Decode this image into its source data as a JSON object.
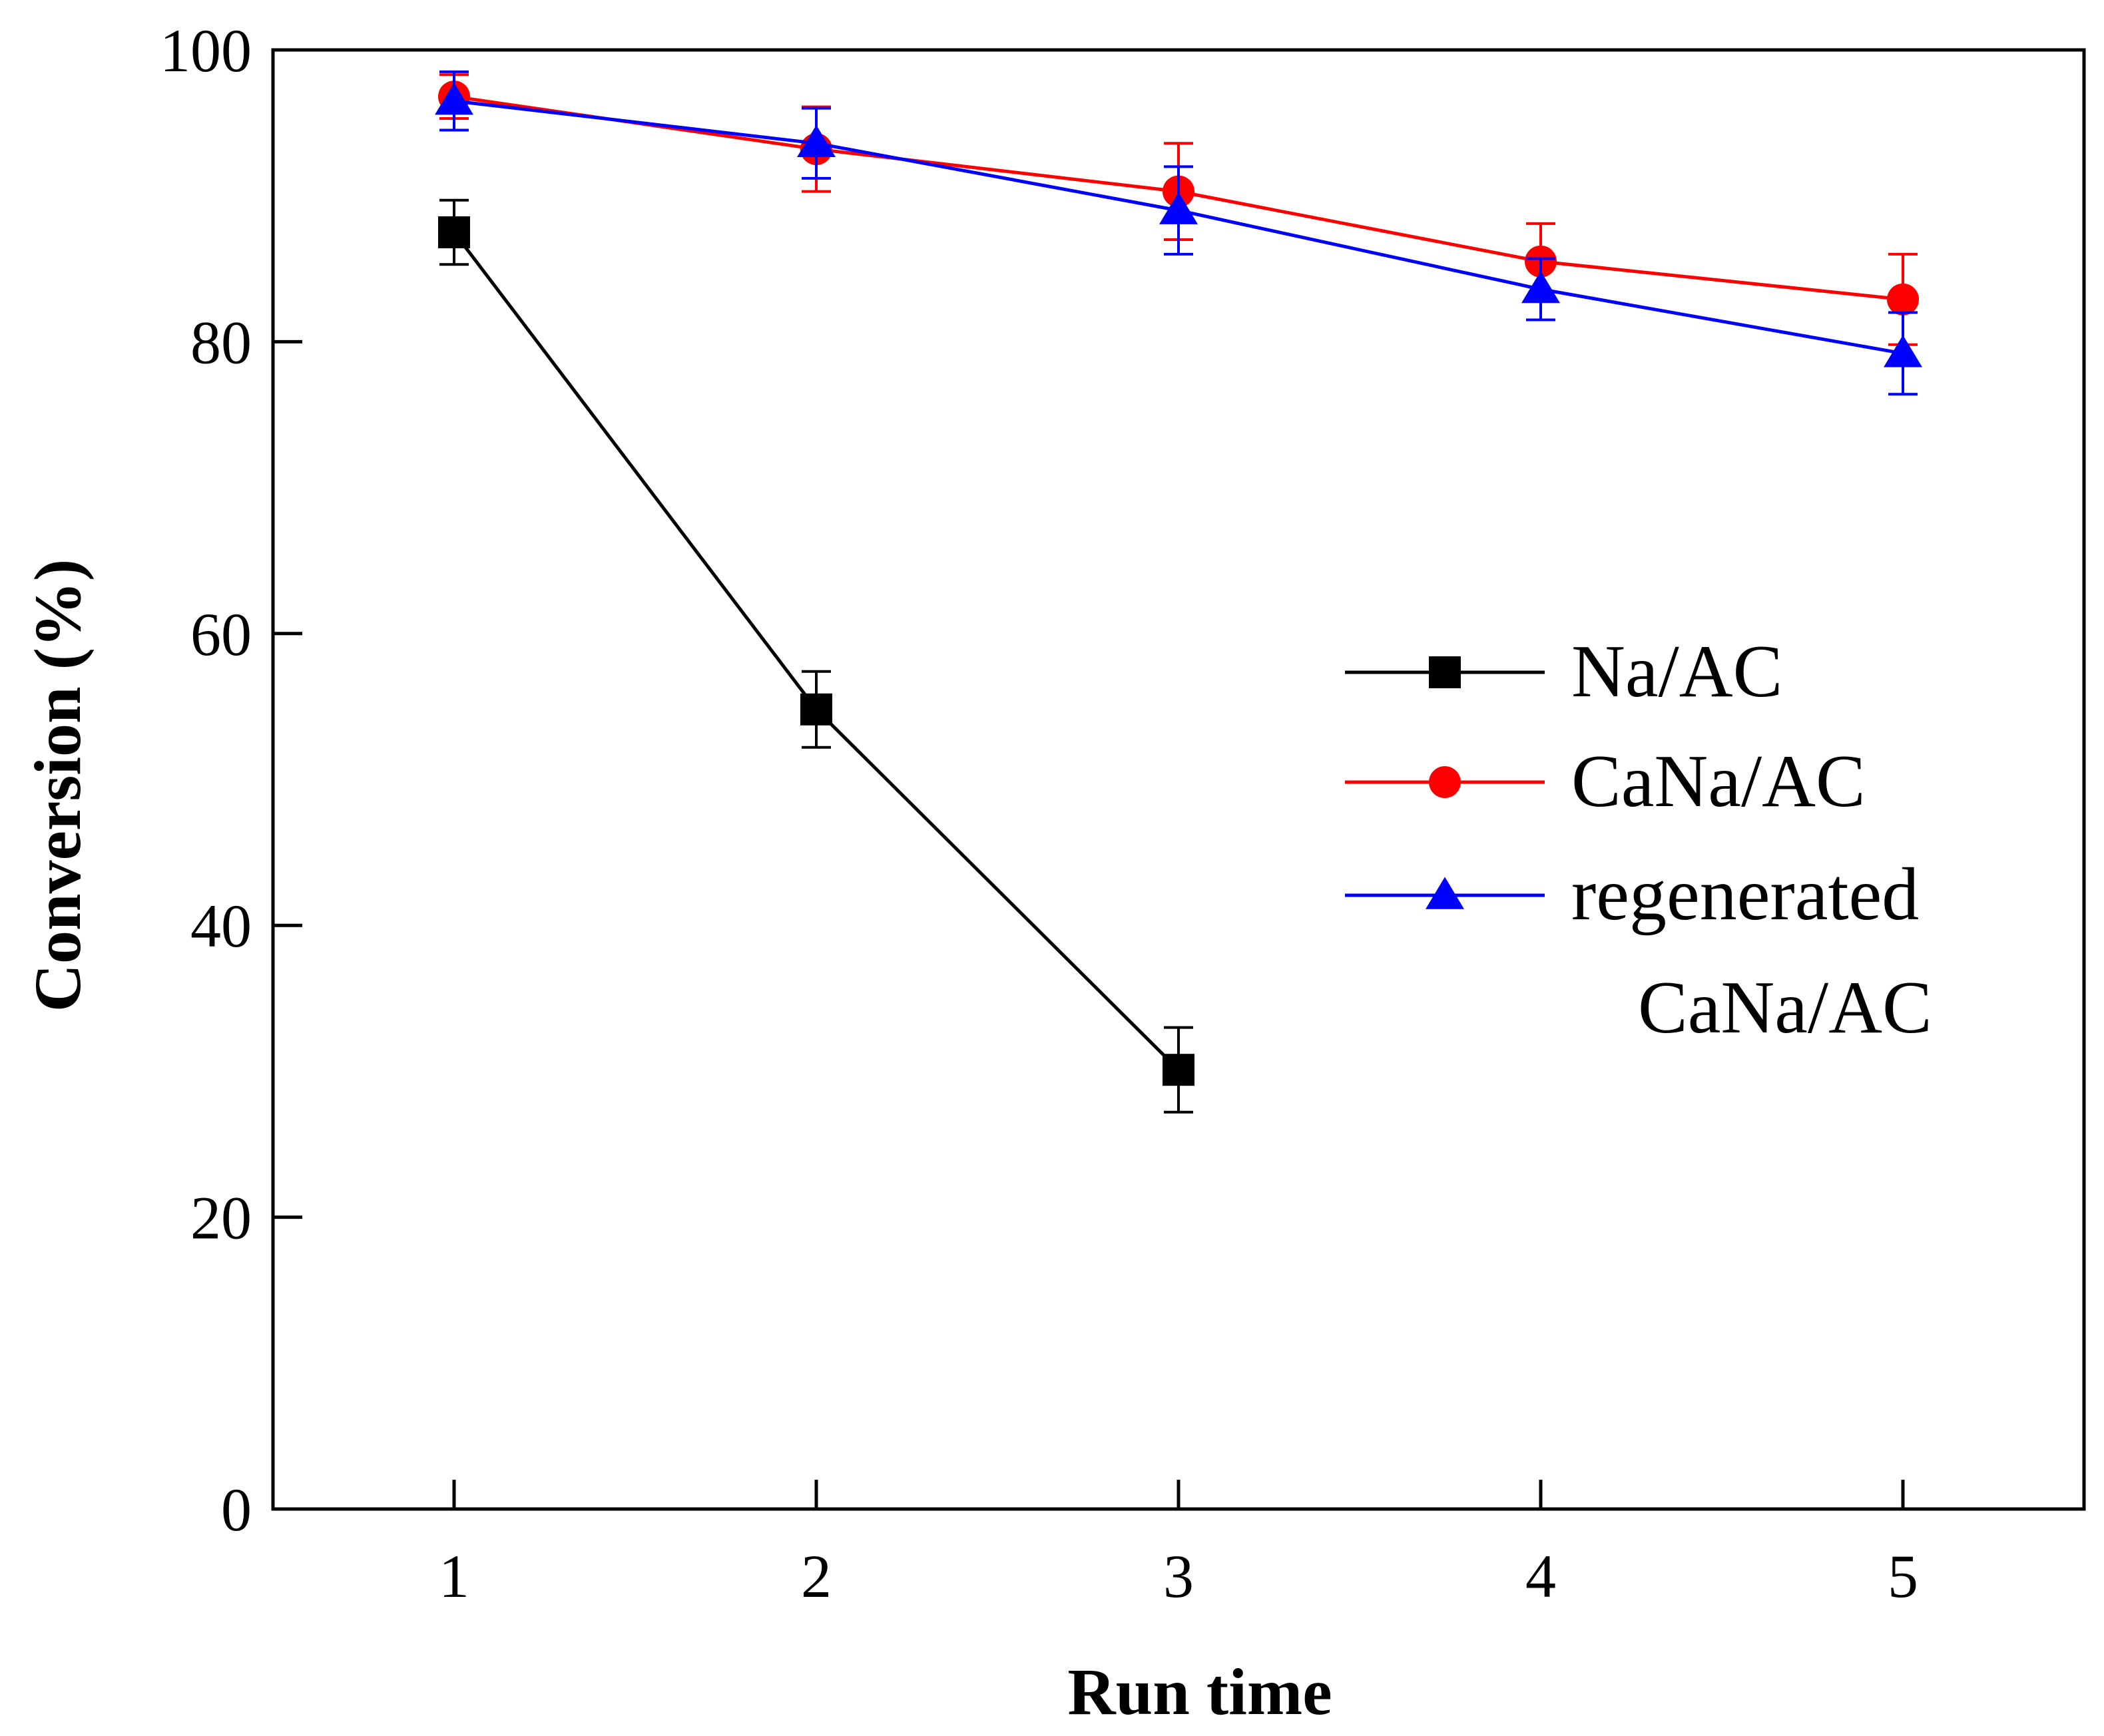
{
  "chart_data": {
    "type": "line",
    "title": "",
    "xlabel": "Run time",
    "ylabel": "Conversion (%)",
    "xlim": [
      0.5,
      5.5
    ],
    "ylim": [
      0,
      100
    ],
    "x_ticks": [
      "1",
      "2",
      "3",
      "4",
      "5"
    ],
    "y_ticks": [
      "0",
      "20",
      "40",
      "60",
      "80",
      "100"
    ],
    "grid": false,
    "legend_position": "center-right",
    "series": [
      {
        "name": "Na/AC",
        "legend_lines": [
          "Na/AC"
        ],
        "color": "#000000",
        "marker": "square",
        "x": [
          1,
          2,
          3
        ],
        "values": [
          87.5,
          54.8,
          30.1
        ],
        "errors": [
          2.2,
          2.6,
          2.9
        ]
      },
      {
        "name": "CaNa/AC",
        "legend_lines": [
          "CaNa/AC"
        ],
        "color": "#ff0000",
        "marker": "circle",
        "x": [
          1,
          2,
          3,
          4,
          5
        ],
        "values": [
          96.8,
          93.2,
          90.3,
          85.5,
          82.9
        ],
        "errors": [
          1.5,
          2.9,
          3.3,
          2.6,
          3.1
        ]
      },
      {
        "name": "regenerated CaNa/AC",
        "legend_lines": [
          "regenerated",
          "CaNa/AC"
        ],
        "color": "#0000ff",
        "marker": "triangle",
        "x": [
          1,
          2,
          3,
          4,
          5
        ],
        "values": [
          96.5,
          93.6,
          89.0,
          83.6,
          79.2
        ],
        "errors": [
          2.0,
          2.4,
          3.0,
          2.1,
          2.8
        ]
      }
    ]
  }
}
